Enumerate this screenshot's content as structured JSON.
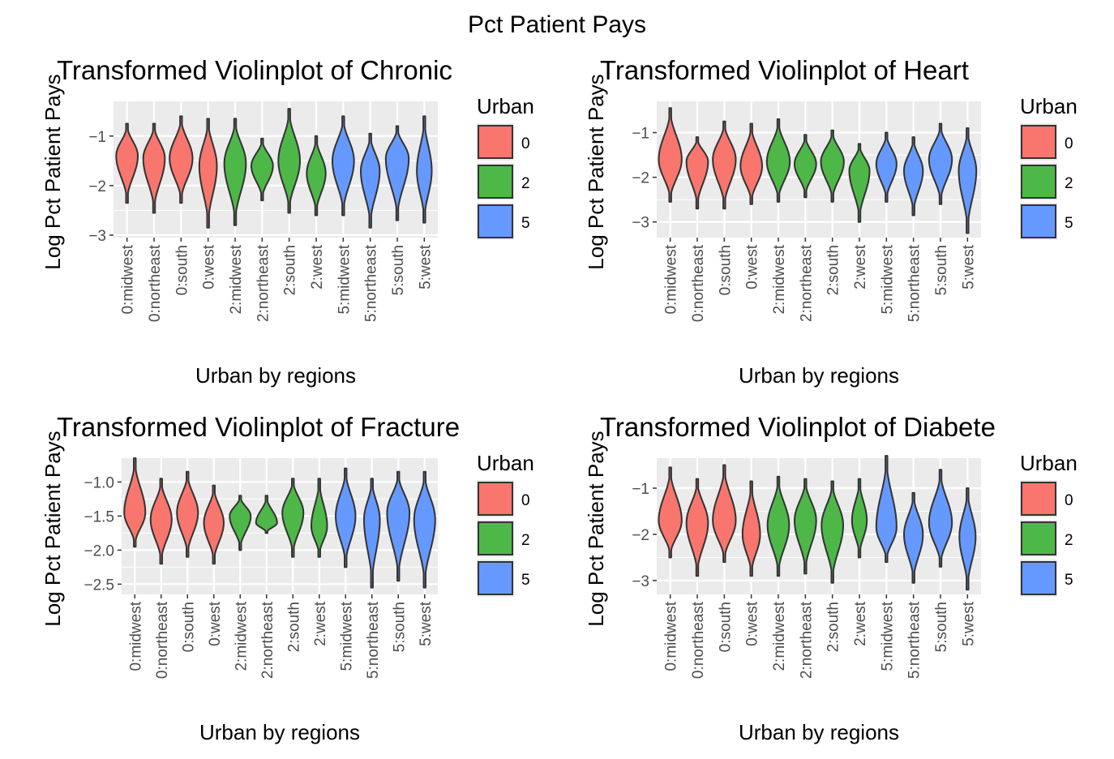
{
  "main_title": "Pct Patient Pays",
  "colors": {
    "panel_bg": "#EBEBEB",
    "grid": "#FFFFFF",
    "outline": "#333333",
    "urban_0": "#F8766D",
    "urban_2": "#4DB848",
    "urban_5": "#6699FF"
  },
  "chart_data": [
    {
      "type": "violin",
      "title": "Transformed Violinplot of Chronic",
      "xlabel": "Urban by regions",
      "ylabel": "Log Pct Patient Pays",
      "categories": [
        "0:midwest",
        "0:northeast",
        "0:south",
        "0:west",
        "2:midwest",
        "2:northeast",
        "2:south",
        "2:west",
        "5:midwest",
        "5:northeast",
        "5:south",
        "5:west"
      ],
      "ylim": [
        -3.05,
        -0.3
      ],
      "yticks": [
        -3,
        -2,
        -1
      ],
      "ytick_labels": [
        "−3",
        "−2",
        "−1"
      ],
      "legend": {
        "title": "Urban",
        "labels": [
          "0",
          "2",
          "5"
        ],
        "position": "right"
      },
      "series": [
        {
          "group": "0",
          "min": -2.35,
          "max": -0.75,
          "mode": -1.4,
          "width": 0.8
        },
        {
          "group": "0",
          "min": -2.55,
          "max": -0.75,
          "mode": -1.45,
          "width": 0.8
        },
        {
          "group": "0",
          "min": -2.35,
          "max": -0.6,
          "mode": -1.45,
          "width": 0.85
        },
        {
          "group": "0",
          "min": -2.85,
          "max": -0.65,
          "mode": -1.6,
          "width": 0.65
        },
        {
          "group": "2",
          "min": -2.8,
          "max": -0.65,
          "mode": -1.55,
          "width": 0.8
        },
        {
          "group": "2",
          "min": -2.3,
          "max": -1.05,
          "mode": -1.6,
          "width": 0.8
        },
        {
          "group": "2",
          "min": -2.55,
          "max": -0.45,
          "mode": -1.5,
          "width": 0.8
        },
        {
          "group": "2",
          "min": -2.6,
          "max": -1.0,
          "mode": -1.75,
          "width": 0.7
        },
        {
          "group": "5",
          "min": -2.6,
          "max": -0.6,
          "mode": -1.5,
          "width": 0.8
        },
        {
          "group": "5",
          "min": -2.85,
          "max": -0.95,
          "mode": -1.7,
          "width": 0.7
        },
        {
          "group": "5",
          "min": -2.7,
          "max": -0.8,
          "mode": -1.45,
          "width": 0.85
        },
        {
          "group": "5",
          "min": -2.75,
          "max": -0.6,
          "mode": -1.7,
          "width": 0.55
        }
      ]
    },
    {
      "type": "violin",
      "title": "Transformed Violinplot of Heart",
      "xlabel": "Urban by regions",
      "ylabel": "Log Pct Patient Pays",
      "categories": [
        "0:midwest",
        "0:northeast",
        "0:south",
        "0:west",
        "2:midwest",
        "2:northeast",
        "2:south",
        "2:west",
        "5:midwest",
        "5:northeast",
        "5:south",
        "5:west"
      ],
      "ylim": [
        -3.35,
        -0.3
      ],
      "yticks": [
        -3,
        -2,
        -1
      ],
      "ytick_labels": [
        "−3",
        "−2",
        "−1"
      ],
      "legend": {
        "title": "Urban",
        "labels": [
          "0",
          "2",
          "5"
        ],
        "position": "right"
      },
      "series": [
        {
          "group": "0",
          "min": -2.55,
          "max": -0.45,
          "mode": -1.6,
          "width": 0.85
        },
        {
          "group": "0",
          "min": -2.7,
          "max": -1.1,
          "mode": -1.65,
          "width": 0.8
        },
        {
          "group": "0",
          "min": -2.7,
          "max": -0.75,
          "mode": -1.6,
          "width": 0.85
        },
        {
          "group": "0",
          "min": -2.6,
          "max": -0.8,
          "mode": -1.75,
          "width": 0.8
        },
        {
          "group": "2",
          "min": -2.55,
          "max": -0.7,
          "mode": -1.65,
          "width": 0.85
        },
        {
          "group": "2",
          "min": -2.45,
          "max": -1.05,
          "mode": -1.7,
          "width": 0.8
        },
        {
          "group": "2",
          "min": -2.55,
          "max": -0.95,
          "mode": -1.65,
          "width": 0.85
        },
        {
          "group": "2",
          "min": -3.0,
          "max": -1.25,
          "mode": -1.85,
          "width": 0.75
        },
        {
          "group": "5",
          "min": -2.55,
          "max": -1.0,
          "mode": -1.7,
          "width": 0.75
        },
        {
          "group": "5",
          "min": -2.85,
          "max": -1.1,
          "mode": -1.85,
          "width": 0.7
        },
        {
          "group": "5",
          "min": -2.6,
          "max": -0.8,
          "mode": -1.6,
          "width": 0.85
        },
        {
          "group": "5",
          "min": -3.25,
          "max": -0.9,
          "mode": -1.85,
          "width": 0.65
        }
      ]
    },
    {
      "type": "violin",
      "title": "Transformed Violinplot of Fracture",
      "xlabel": "Urban by regions",
      "ylabel": "Log Pct Patient Pays",
      "categories": [
        "0:midwest",
        "0:northeast",
        "0:south",
        "0:west",
        "2:midwest",
        "2:northeast",
        "2:south",
        "2:west",
        "5:midwest",
        "5:northeast",
        "5:south",
        "5:west"
      ],
      "ylim": [
        -2.65,
        -0.65
      ],
      "yticks": [
        -2.5,
        -2.0,
        -1.5,
        -1.0
      ],
      "ytick_labels": [
        "−2.5",
        "−2.0",
        "−1.5",
        "−1.0"
      ],
      "legend": {
        "title": "Urban",
        "labels": [
          "0",
          "2",
          "5"
        ],
        "position": "right"
      },
      "series": [
        {
          "group": "0",
          "min": -1.95,
          "max": -0.65,
          "mode": -1.45,
          "width": 0.8
        },
        {
          "group": "0",
          "min": -2.2,
          "max": -0.95,
          "mode": -1.55,
          "width": 0.8
        },
        {
          "group": "0",
          "min": -2.1,
          "max": -0.85,
          "mode": -1.45,
          "width": 0.8
        },
        {
          "group": "0",
          "min": -2.2,
          "max": -1.05,
          "mode": -1.6,
          "width": 0.75
        },
        {
          "group": "2",
          "min": -2.0,
          "max": -1.2,
          "mode": -1.5,
          "width": 0.8
        },
        {
          "group": "2",
          "min": -1.75,
          "max": -1.2,
          "mode": -1.6,
          "width": 0.8
        },
        {
          "group": "2",
          "min": -2.1,
          "max": -0.95,
          "mode": -1.45,
          "width": 0.8
        },
        {
          "group": "2",
          "min": -2.1,
          "max": -0.95,
          "mode": -1.65,
          "width": 0.6
        },
        {
          "group": "5",
          "min": -2.25,
          "max": -0.8,
          "mode": -1.5,
          "width": 0.75
        },
        {
          "group": "5",
          "min": -2.55,
          "max": -0.95,
          "mode": -1.55,
          "width": 0.6
        },
        {
          "group": "5",
          "min": -2.45,
          "max": -0.85,
          "mode": -1.45,
          "width": 0.85
        },
        {
          "group": "5",
          "min": -2.55,
          "max": -0.85,
          "mode": -1.55,
          "width": 0.8
        }
      ]
    },
    {
      "type": "violin",
      "title": "Transformed Violinplot of Diabete",
      "xlabel": "Urban by regions",
      "ylabel": "Log Pct Patient Pays",
      "categories": [
        "0:midwest",
        "0:northeast",
        "0:south",
        "0:west",
        "2:midwest",
        "2:northeast",
        "2:south",
        "2:west",
        "5:midwest",
        "5:northeast",
        "5:south",
        "5:west"
      ],
      "ylim": [
        -3.3,
        -0.35
      ],
      "yticks": [
        -3,
        -2,
        -1
      ],
      "ytick_labels": [
        "−3",
        "−2",
        "−1"
      ],
      "legend": {
        "title": "Urban",
        "labels": [
          "0",
          "2",
          "5"
        ],
        "position": "right"
      },
      "series": [
        {
          "group": "0",
          "min": -2.5,
          "max": -0.55,
          "mode": -1.7,
          "width": 0.85
        },
        {
          "group": "0",
          "min": -2.9,
          "max": -0.8,
          "mode": -1.75,
          "width": 0.8
        },
        {
          "group": "0",
          "min": -2.6,
          "max": -0.5,
          "mode": -1.7,
          "width": 0.85
        },
        {
          "group": "0",
          "min": -2.9,
          "max": -0.85,
          "mode": -2.0,
          "width": 0.65
        },
        {
          "group": "2",
          "min": -2.9,
          "max": -0.75,
          "mode": -1.8,
          "width": 0.8
        },
        {
          "group": "2",
          "min": -2.85,
          "max": -0.8,
          "mode": -1.7,
          "width": 0.8
        },
        {
          "group": "2",
          "min": -3.05,
          "max": -0.85,
          "mode": -1.8,
          "width": 0.8
        },
        {
          "group": "2",
          "min": -2.5,
          "max": -0.8,
          "mode": -1.7,
          "width": 0.55
        },
        {
          "group": "5",
          "min": -2.6,
          "max": -0.3,
          "mode": -1.85,
          "width": 0.75
        },
        {
          "group": "5",
          "min": -3.05,
          "max": -1.1,
          "mode": -2.0,
          "width": 0.7
        },
        {
          "group": "5",
          "min": -2.7,
          "max": -0.6,
          "mode": -1.75,
          "width": 0.85
        },
        {
          "group": "5",
          "min": -3.2,
          "max": -1.0,
          "mode": -2.05,
          "width": 0.6
        }
      ]
    }
  ]
}
